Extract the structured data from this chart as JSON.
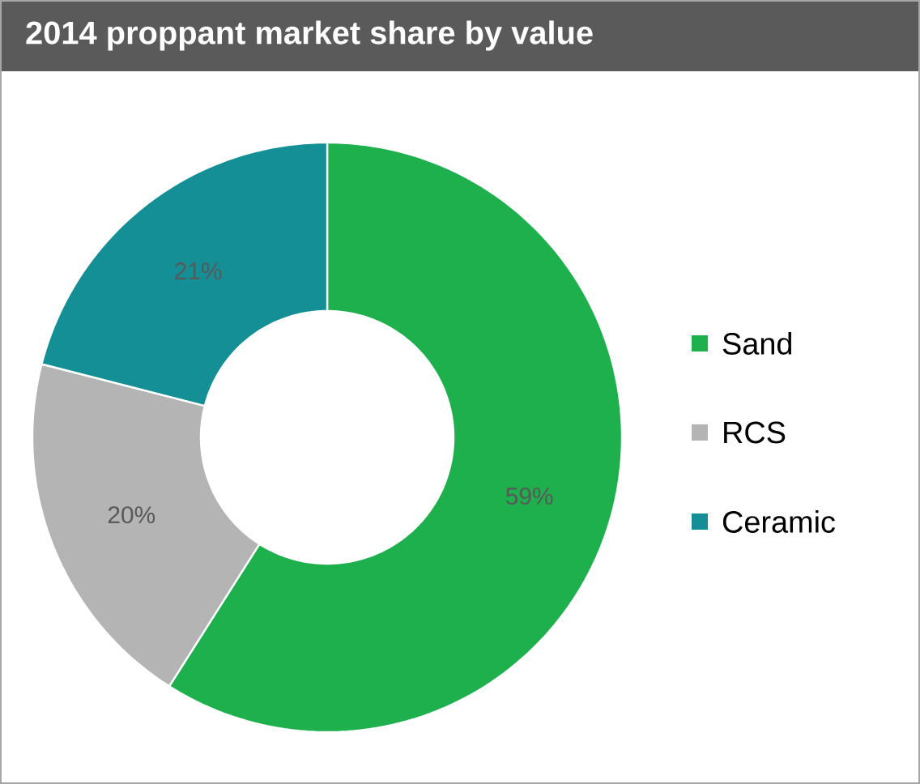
{
  "chart_data": {
    "type": "donut",
    "title": "2014 proppant market share by value",
    "categories": [
      "Sand",
      "RCS",
      "Ceramic"
    ],
    "values": [
      59,
      20,
      21
    ],
    "colors": [
      "#1db04c",
      "#b4b4b4",
      "#138f95"
    ],
    "value_labels": [
      "59%",
      "20%",
      "21%"
    ],
    "legend": "right"
  }
}
